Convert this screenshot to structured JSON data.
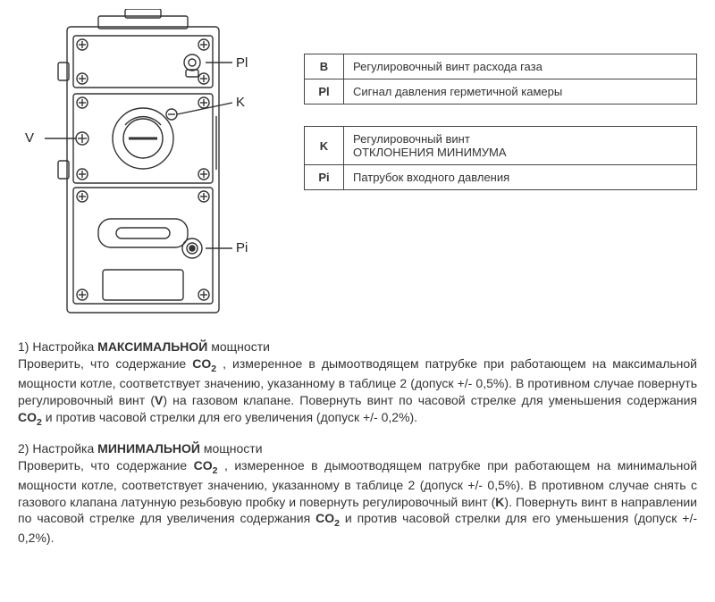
{
  "callouts": {
    "V": "V",
    "Pl": "Pl",
    "K": "K",
    "Pi": "Pi"
  },
  "legend1": [
    {
      "key": "В",
      "desc": "Регулировочный винт  расхода газа"
    },
    {
      "key": "Pl",
      "desc": "Сигнал давления герметичной камеры"
    }
  ],
  "legend2": [
    {
      "key": "K",
      "desc": "Регулировочный винт\nОТКЛОНЕНИЯ МИНИМУМА"
    },
    {
      "key": "Pi",
      "desc": "Патрубок входного давления"
    }
  ],
  "section1": {
    "title_prefix": "1) Настройка ",
    "title_bold": "МАКСИМАЛЬНОЙ",
    "title_suffix": " мощности",
    "body_parts": [
      "Проверить, что содержание   ",
      {
        "bold": "CO",
        "sub": "2"
      },
      " , измеренное в дымоотводящем патрубке при работающем на максимальной мощности котле, соответствует значению, указанному в таблице 2 (допуск +/- 0,5%). В противном случае повернуть регулировочный винт (",
      {
        "bold": "V"
      },
      ") на газовом клапане. Повернуть винт по часовой стрелке для уменьшения содержания ",
      {
        "bold": "CO",
        "sub": "2"
      },
      " и против часовой стрелки для его увеличения (допуск +/- 0,2%)."
    ]
  },
  "section2": {
    "title_prefix": "2) Настройка ",
    "title_bold": "МИНИМАЛЬНОЙ",
    "title_suffix": " мощности",
    "body_parts": [
      "Проверить, что содержание ",
      {
        "bold": "CO",
        "sub": "2"
      },
      " , измеренное в дымоотводящем патрубке при работающем на минимальной мощности котле, соответствует значению, указанному в таблице 2 (допуск +/- 0,5%). В противном случае снять с газового клапана латунную резьбовую пробку и повернуть регулировочный винт (",
      {
        "bold": "K"
      },
      "). Повернуть винт в направлении по часовой стрелке для увеличения содержания ",
      {
        "bold": "CO",
        "sub": "2"
      },
      " и против часовой стрелки для его уменьшения (допуск +/- 0,2%)."
    ]
  },
  "diagram_style": {
    "stroke": "#333",
    "stroke_width": 1.4,
    "fill": "#fff"
  }
}
